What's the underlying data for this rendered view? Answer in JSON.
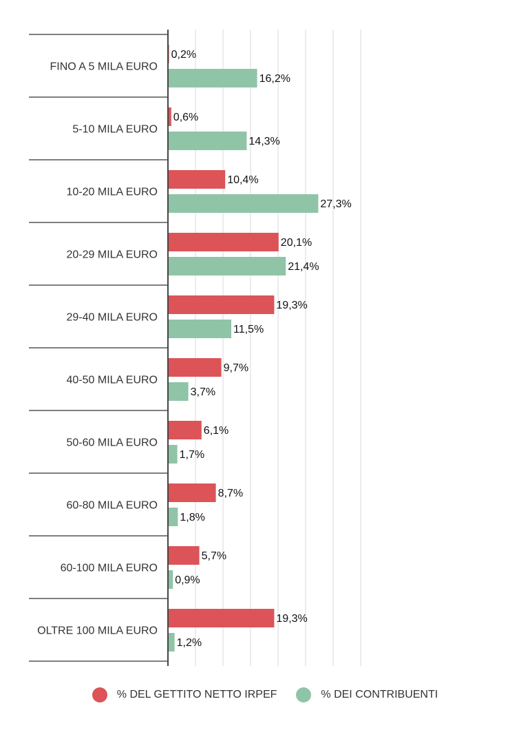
{
  "colors": {
    "gettito": "#dc5458",
    "contribuenti": "#90c4a7",
    "grid": "#d9d9d9",
    "axis": "#444444",
    "separator": "#555555"
  },
  "chart_data": {
    "type": "bar",
    "orientation": "horizontal",
    "categories": [
      "FINO A 5 MILA EURO",
      "5-10 MILA EURO",
      "10-20 MILA EURO",
      "20-29 MILA EURO",
      "29-40 MILA EURO",
      "40-50 MILA EURO",
      "50-60 MILA EURO",
      "60-80 MILA EURO",
      "60-100 MILA EURO",
      "OLTRE 100 MILA EURO"
    ],
    "series": [
      {
        "name": "% DEL GETTITO NETTO IRPEF",
        "color": "#dc5458",
        "values": [
          0.2,
          0.6,
          10.4,
          20.1,
          19.3,
          9.7,
          6.1,
          8.7,
          5.7,
          19.3
        ],
        "labels": [
          "0,2%",
          "0,6%",
          "10,4%",
          "20,1%",
          "19,3%",
          "9,7%",
          "6,1%",
          "8,7%",
          "5,7%",
          "19,3%"
        ]
      },
      {
        "name": "% DEI CONTRIBUENTI",
        "color": "#90c4a7",
        "values": [
          16.2,
          14.3,
          27.3,
          21.4,
          11.5,
          3.7,
          1.7,
          1.8,
          0.9,
          1.2
        ],
        "labels": [
          "16,2%",
          "14,3%",
          "27,3%",
          "21,4%",
          "11,5%",
          "3,7%",
          "1,7%",
          "1,8%",
          "0,9%",
          "1,2%"
        ]
      }
    ],
    "xlim": [
      0,
      35
    ],
    "grid": true,
    "legend_position": "bottom"
  }
}
